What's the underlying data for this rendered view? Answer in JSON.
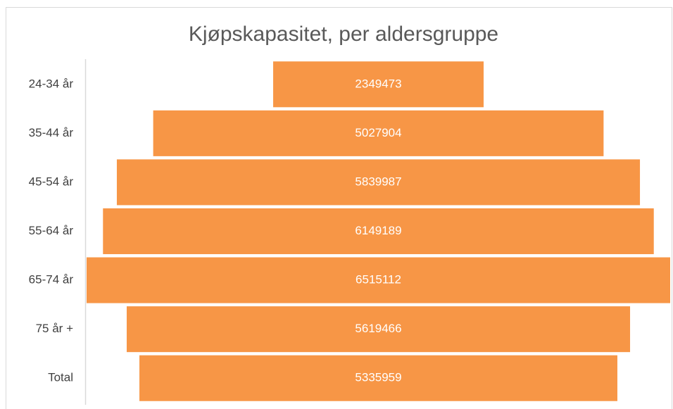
{
  "chart_data": {
    "type": "funnel",
    "title": "Kjøpskapasitet, per aldersgruppe",
    "categories": [
      "24-34 år",
      "35-44 år",
      "45-54 år",
      "55-64 år",
      "65-74 år",
      "75 år +",
      "Total"
    ],
    "values": [
      2349473,
      5027904,
      5839987,
      6149189,
      6515112,
      5619466,
      5335959
    ],
    "color": "#f79646"
  }
}
